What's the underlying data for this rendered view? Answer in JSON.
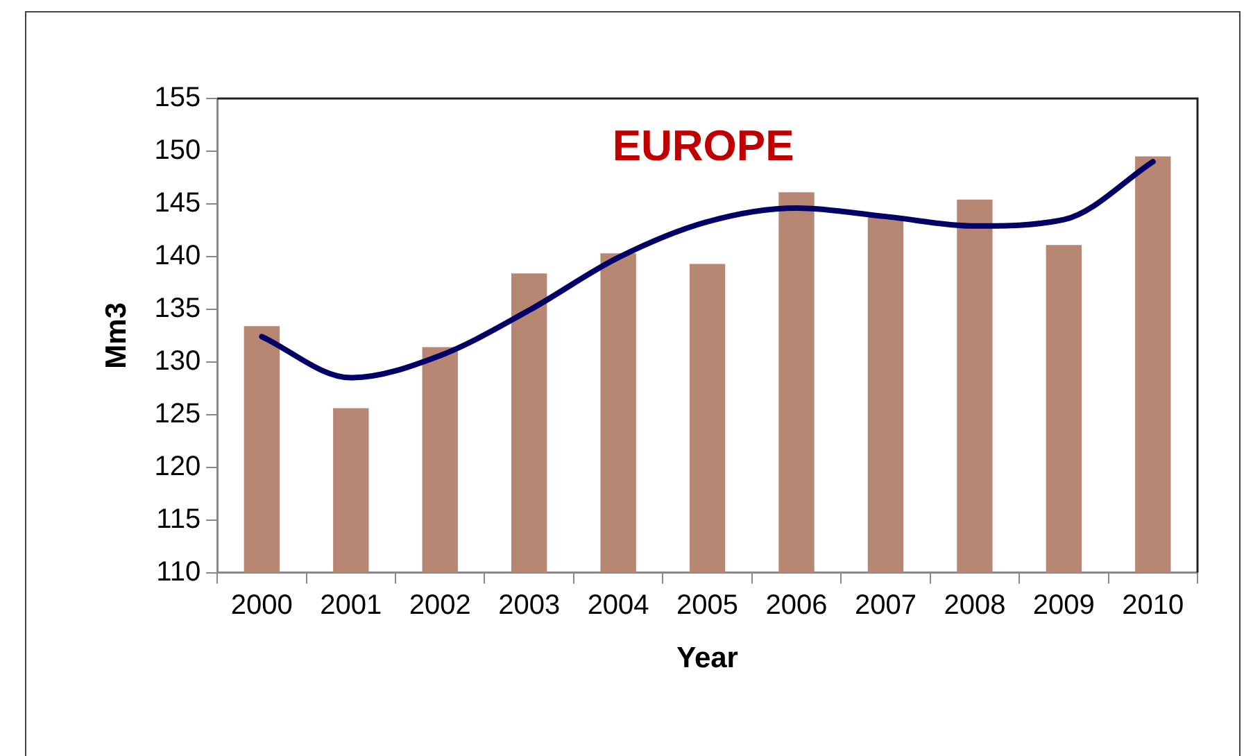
{
  "chart_data": {
    "type": "bar",
    "title": "EUROPE",
    "xlabel": "Year",
    "ylabel": "Mm3",
    "categories": [
      "2000",
      "2001",
      "2002",
      "2003",
      "2004",
      "2005",
      "2006",
      "2007",
      "2008",
      "2009",
      "2010"
    ],
    "series": [
      {
        "color": "#b88773",
        "values": [
          133.4,
          125.6,
          131.4,
          138.4,
          140.3,
          139.3,
          146.1,
          143.8,
          145.4,
          141.1,
          149.5
        ]
      },
      {
        "type": "line",
        "color": "#000066",
        "values": [
          132.4,
          128.5,
          130.6,
          134.9,
          139.9,
          143.3,
          144.6,
          143.8,
          142.9,
          143.5,
          149.0
        ]
      }
    ],
    "ylim": [
      110,
      155
    ],
    "yticks": [
      110,
      115,
      120,
      125,
      130,
      135,
      140,
      145,
      150,
      155
    ],
    "grid": false,
    "legend": false,
    "marker": "none",
    "line_style": "solid"
  }
}
